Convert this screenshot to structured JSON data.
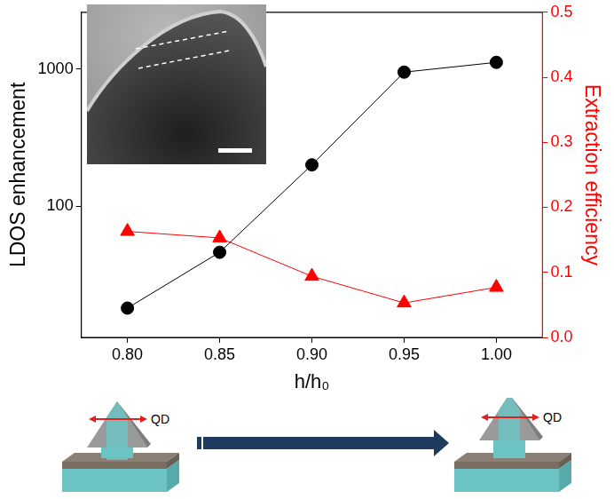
{
  "chart_data": {
    "type": "line",
    "x_label": "h/h₀",
    "x": [
      0.8,
      0.85,
      0.9,
      0.95,
      1.0
    ],
    "series": [
      {
        "name": "LDOS enhancement",
        "color": "#000000",
        "marker": "circle",
        "values": [
          18,
          46,
          200,
          950,
          1120
        ]
      },
      {
        "name": "Extraction efficiency",
        "color": "#ff0000",
        "marker": "triangle",
        "axis": "y2",
        "values": [
          0.163,
          0.153,
          0.094,
          0.053,
          0.077
        ]
      }
    ],
    "log": "y",
    "xlim": [
      0.775,
      1.025
    ],
    "xticks": [
      {
        "value": 0.8,
        "label": "0.80"
      },
      0.85,
      {
        "value": 0.9,
        "label": "0.90"
      },
      0.95,
      {
        "value": 1.0,
        "label": "1.00"
      }
    ],
    "ylim": [
      11,
      2600
    ],
    "yticks": [
      100,
      1000
    ],
    "y2lim": [
      0,
      0.5
    ],
    "y2ticks": [
      {
        "value": 0,
        "label": "0.0"
      },
      0.1,
      0.2,
      0.3,
      0.4,
      0.5
    ],
    "grid": false,
    "annotations": [
      "QD",
      "QD"
    ]
  }
}
